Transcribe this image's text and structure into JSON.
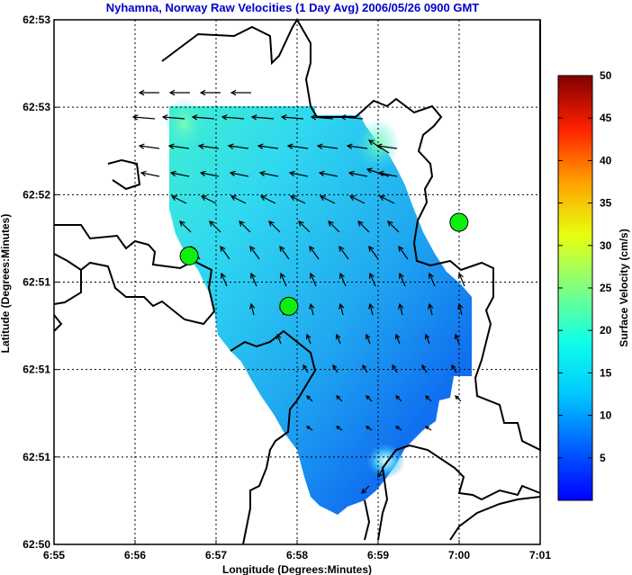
{
  "chart_data": {
    "type": "heatmap",
    "title": "Nyhamna, Norway Raw Velocities (1 Day Avg) 2006/05/26 0900 GMT",
    "xlabel": "Longitude (Degrees:Minutes)",
    "ylabel": "Latitude (Degrees:Minutes)",
    "x_ticks": [
      "6:55",
      "6:56",
      "6:57",
      "6:58",
      "6:59",
      "7:00",
      "7:01"
    ],
    "y_ticks": [
      "62:50",
      "62:51",
      "62:51",
      "62:51",
      "62:52",
      "62:53",
      "62:53"
    ],
    "xlim": [
      6.9167,
      7.0167
    ],
    "ylim": [
      62.8333,
      62.8833
    ],
    "grid": true,
    "colorbar": {
      "label": "Surface Velocity (cm/s)",
      "range": [
        0,
        50
      ],
      "ticks": [
        5,
        10,
        15,
        20,
        25,
        30,
        35,
        40,
        45,
        50
      ]
    },
    "sites": [
      {
        "lon": 6.9445,
        "lat": 62.8608
      },
      {
        "lon": 6.965,
        "lat": 62.856
      },
      {
        "lon": 7.0,
        "lat": 62.864
      }
    ]
  }
}
